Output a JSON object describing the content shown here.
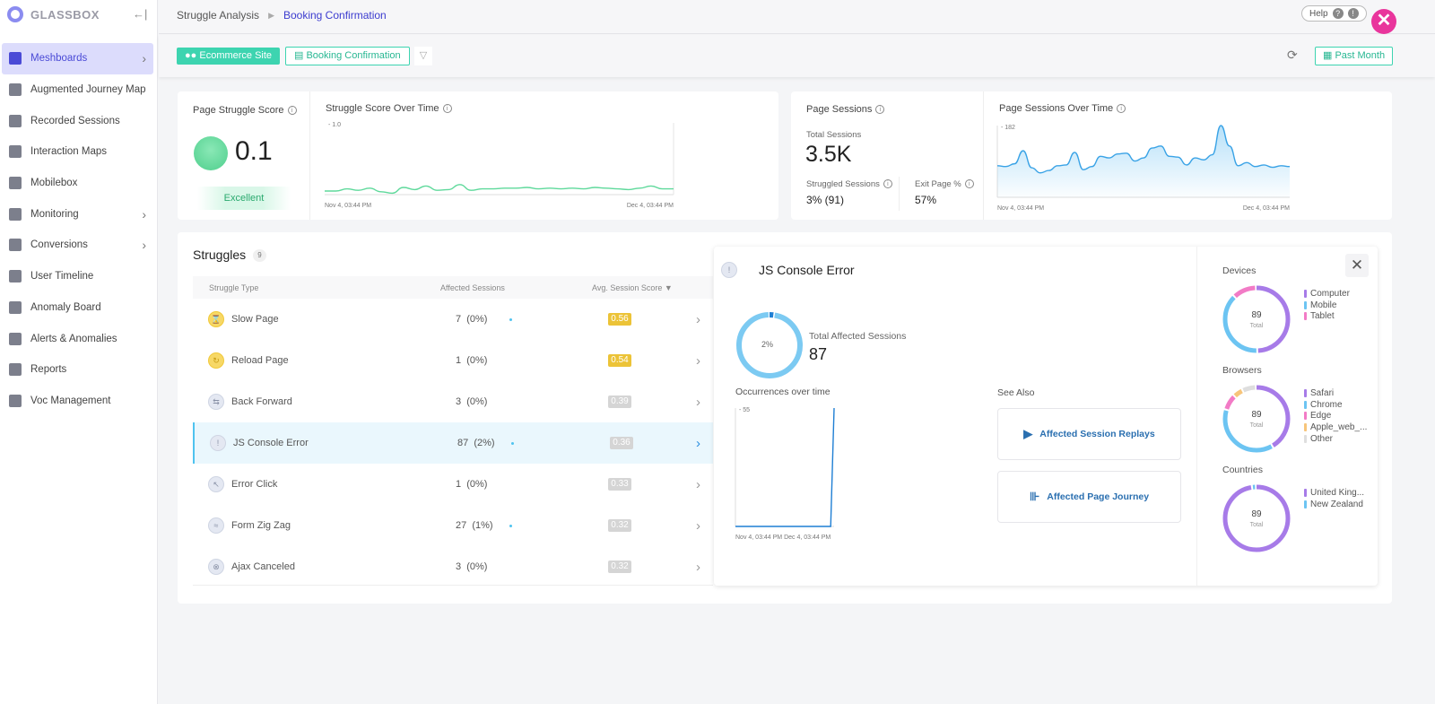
{
  "app": {
    "logo": "GLASSBOX",
    "collapse_icon": "collapse-left-icon"
  },
  "sidebar": {
    "items": [
      {
        "label": "Meshboards",
        "icon": "dashboard-icon",
        "active": true,
        "chevron": true
      },
      {
        "label": "Augmented Journey Map",
        "icon": "journey-icon"
      },
      {
        "label": "Recorded Sessions",
        "icon": "play-icon"
      },
      {
        "label": "Interaction Maps",
        "icon": "bubbles-icon"
      },
      {
        "label": "Mobilebox",
        "icon": "mobile-icon"
      },
      {
        "label": "Monitoring",
        "icon": "chart-icon",
        "chevron": true
      },
      {
        "label": "Conversions",
        "icon": "funnel-icon",
        "chevron": true
      },
      {
        "label": "User Timeline",
        "icon": "user-timeline-icon"
      },
      {
        "label": "Anomaly Board",
        "icon": "anomaly-icon"
      },
      {
        "label": "Alerts & Anomalies",
        "icon": "alert-icon"
      },
      {
        "label": "Reports",
        "icon": "report-icon"
      },
      {
        "label": "Voc Management",
        "icon": "star-icon"
      }
    ]
  },
  "breadcrumb": {
    "parent": "Struggle Analysis",
    "current": "Booking Confirmation"
  },
  "header": {
    "help": "Help"
  },
  "filters": {
    "site": "Ecommerce Site",
    "page": "Booking Confirmation",
    "date": "Past Month"
  },
  "struggle_score": {
    "title": "Page Struggle Score",
    "value": "0.1",
    "rating": "Excellent"
  },
  "score_over_time": {
    "title": "Struggle Score Over Time",
    "ymax": "1.0",
    "x_start": "Nov 4, 03:44 PM",
    "x_end": "Dec 4, 03:44 PM",
    "values": [
      0.05,
      0.05,
      0.08,
      0.06,
      0.09,
      0.04,
      0.02,
      0.1,
      0.07,
      0.12,
      0.06,
      0.07,
      0.14,
      0.06,
      0.08,
      0.08,
      0.09,
      0.09,
      0.1,
      0.08,
      0.09,
      0.08,
      0.09,
      0.08,
      0.1,
      0.09,
      0.08,
      0.07,
      0.09,
      0.12,
      0.08,
      0.08
    ]
  },
  "page_sessions": {
    "title": "Page Sessions",
    "total_label": "Total Sessions",
    "total": "3.5K",
    "struggled_label": "Struggled Sessions",
    "struggled": "3% (91)",
    "exit_label": "Exit Page %",
    "exit": "57%"
  },
  "sessions_over_time": {
    "title": "Page Sessions Over Time",
    "ymax": "182",
    "x_start": "Nov 4, 03:44 PM",
    "x_end": "Dec 4, 03:44 PM",
    "values": [
      80,
      78,
      85,
      118,
      75,
      62,
      68,
      80,
      82,
      114,
      70,
      78,
      104,
      100,
      110,
      112,
      92,
      100,
      125,
      130,
      104,
      102,
      82,
      100,
      95,
      108,
      182,
      130,
      80,
      88,
      78,
      82,
      76,
      80,
      78
    ]
  },
  "struggles": {
    "title": "Struggles",
    "count": "9",
    "columns": [
      "Struggle Type",
      "Affected Sessions",
      "Avg. Session Score"
    ],
    "rows": [
      {
        "name": "Slow Page",
        "sessions": "7",
        "pct": "(0%)",
        "score": "0.56",
        "icon": "hourglass-icon",
        "level": "warn"
      },
      {
        "name": "Reload Page",
        "sessions": "1",
        "pct": "(0%)",
        "score": "0.54",
        "icon": "reload-icon",
        "level": "warn"
      },
      {
        "name": "Back Forward",
        "sessions": "3",
        "pct": "(0%)",
        "score": "0.39",
        "icon": "back-forward-icon",
        "level": "low"
      },
      {
        "name": "JS Console Error",
        "sessions": "87",
        "pct": "(2%)",
        "score": "0.36",
        "icon": "error-icon",
        "level": "low",
        "selected": true
      },
      {
        "name": "Error Click",
        "sessions": "1",
        "pct": "(0%)",
        "score": "0.33",
        "icon": "error-click-icon",
        "level": "low"
      },
      {
        "name": "Form Zig Zag",
        "sessions": "27",
        "pct": "(1%)",
        "score": "0.32",
        "icon": "zigzag-icon",
        "level": "low"
      },
      {
        "name": "Ajax Canceled",
        "sessions": "3",
        "pct": "(0%)",
        "score": "0.32",
        "icon": "cancel-icon",
        "level": "low"
      }
    ]
  },
  "detail": {
    "title": "JS Console Error",
    "ring_pct": "2%",
    "ring_value": 2,
    "affected_label": "Total Affected Sessions",
    "affected": "87",
    "occ_title": "Occurrences over time",
    "occ_ymax": "55",
    "occ_x_start": "Nov 4, 03:44 PM",
    "occ_x_end": "Dec 4, 03:44 PM",
    "occ_values": [
      0,
      0,
      0,
      0,
      0,
      0,
      0,
      0,
      0,
      0,
      0,
      0,
      0,
      0,
      0,
      0,
      0,
      0,
      0,
      0,
      0,
      0,
      0,
      0,
      0,
      0,
      0,
      0,
      0,
      55
    ],
    "see_also": "See Also",
    "replays": "Affected Session Replays",
    "journey": "Affected Page Journey",
    "donuts": [
      {
        "title": "Devices",
        "total": "89",
        "total_label": "Total",
        "items": [
          {
            "label": "Computer",
            "value": 50,
            "color": "#a77be8"
          },
          {
            "label": "Mobile",
            "value": 38,
            "color": "#6cc4f2"
          },
          {
            "label": "Tablet",
            "value": 12,
            "color": "#f27bc6"
          }
        ]
      },
      {
        "title": "Browsers",
        "total": "89",
        "total_label": "Total",
        "items": [
          {
            "label": "Safari",
            "value": 42,
            "color": "#a77be8"
          },
          {
            "label": "Chrome",
            "value": 38,
            "color": "#6cc4f2"
          },
          {
            "label": "Edge",
            "value": 8,
            "color": "#f27bc6"
          },
          {
            "label": "Apple_web_...",
            "value": 5,
            "color": "#f7c57a"
          },
          {
            "label": "Other",
            "value": 7,
            "color": "#dedede"
          }
        ]
      },
      {
        "title": "Countries",
        "total": "89",
        "total_label": "Total",
        "items": [
          {
            "label": "United King...",
            "value": 98,
            "color": "#a77be8"
          },
          {
            "label": "New Zealand",
            "value": 2,
            "color": "#6cc4f2"
          }
        ]
      }
    ]
  },
  "colors": {
    "accent": "#3dd4b0",
    "active_nav": "#4a4ad6",
    "link": "#2a6fb0"
  }
}
